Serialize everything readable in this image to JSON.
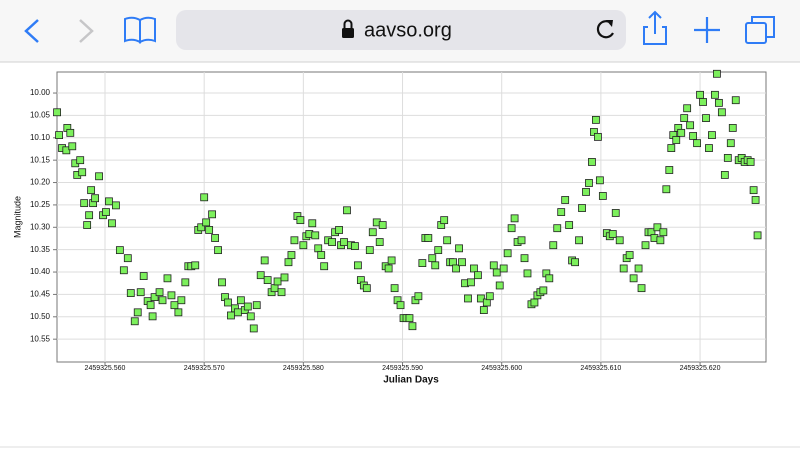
{
  "browser": {
    "url": "aavso.org"
  },
  "chart_data": {
    "type": "scatter",
    "xlabel": "Julian Days",
    "ylabel": "Magnitude",
    "color": "#7cf05c",
    "grid": true,
    "y_inverted": true,
    "xlim": [
      2459325.55516,
      2459325.62665
    ],
    "ylim": [
      10.601,
      9.953
    ],
    "xticks": [
      {
        "value": 2459325.56,
        "label": "2459325.560"
      },
      {
        "value": 2459325.57,
        "label": "2459325.570"
      },
      {
        "value": 2459325.58,
        "label": "2459325.580"
      },
      {
        "value": 2459325.59,
        "label": "2459325.590"
      },
      {
        "value": 2459325.6,
        "label": "2459325.600"
      },
      {
        "value": 2459325.61,
        "label": "2459325.610"
      },
      {
        "value": 2459325.62,
        "label": "2459325.620"
      }
    ],
    "yticks": [
      {
        "value": 10,
        "label": "10.00"
      },
      {
        "value": 10.05,
        "label": "10.05"
      },
      {
        "value": 10.1,
        "label": "10.10"
      },
      {
        "value": 10.15,
        "label": "10.15"
      },
      {
        "value": 10.2,
        "label": "10.20"
      },
      {
        "value": 10.25,
        "label": "10.25"
      },
      {
        "value": 10.3,
        "label": "10.30"
      },
      {
        "value": 10.35,
        "label": "10.35"
      },
      {
        "value": 10.4,
        "label": "10.40"
      },
      {
        "value": 10.45,
        "label": "10.45"
      },
      {
        "value": 10.5,
        "label": "10.50"
      },
      {
        "value": 10.55,
        "label": "10.55"
      }
    ],
    "x": [
      2459325.55517,
      2459325.55537,
      2459325.55567,
      2459325.5561,
      2459325.5562,
      2459325.5565,
      2459325.5567,
      2459325.557,
      2459325.5572,
      2459325.5575,
      2459325.5577,
      2459325.5579,
      2459325.5582,
      2459325.5584,
      2459325.5586,
      2459325.5588,
      2459325.559,
      2459325.5594,
      2459325.5598,
      2459325.5601,
      2459325.5604,
      2459325.5607,
      2459325.5611,
      2459325.5615,
      2459325.5619,
      2459325.5623,
      2459325.5626,
      2459325.563,
      2459325.5633,
      2459325.5636,
      2459325.5639,
      2459325.5643,
      2459325.5646,
      2459325.5648,
      2459325.565,
      2459325.5655,
      2459325.5658,
      2459325.5663,
      2459325.5667,
      2459325.567,
      2459325.5674,
      2459325.5677,
      2459325.5681,
      2459325.5684,
      2459325.5687,
      2459325.5691,
      2459325.5694,
      2459325.5697,
      2459325.57,
      2459325.5702,
      2459325.5705,
      2459325.5708,
      2459325.5711,
      2459325.5714,
      2459325.5718,
      2459325.5721,
      2459325.5724,
      2459325.5727,
      2459325.5731,
      2459325.5734,
      2459325.5737,
      2459325.5741,
      2459325.5744,
      2459325.5747,
      2459325.575,
      2459325.5753,
      2459325.5757,
      2459325.5761,
      2459325.5764,
      2459325.5768,
      2459325.5771,
      2459325.5774,
      2459325.5778,
      2459325.5781,
      2459325.5785,
      2459325.5788,
      2459325.5791,
      2459325.5794,
      2459325.5797,
      2459325.58,
      2459325.5803,
      2459325.5806,
      2459325.5809,
      2459325.5812,
      2459325.5815,
      2459325.5818,
      2459325.5821,
      2459325.5825,
      2459325.5829,
      2459325.5832,
      2459325.5836,
      2459325.5838,
      2459325.5841,
      2459325.5844,
      2459325.5848,
      2459325.5852,
      2459325.5855,
      2459325.5858,
      2459325.5861,
      2459325.5864,
      2459325.5867,
      2459325.587,
      2459325.5874,
      2459325.5877,
      2459325.588,
      2459325.5883,
      2459325.5886,
      2459325.5889,
      2459325.5892,
      2459325.5895,
      2459325.5898,
      2459325.5901,
      2459325.5904,
      2459325.5907,
      2459325.591,
      2459325.5913,
      2459325.5916,
      2459325.592,
      2459325.5923,
      2459325.5926,
      2459325.593,
      2459325.5933,
      2459325.5936,
      2459325.5939,
      2459325.5942,
      2459325.5945,
      2459325.5948,
      2459325.5951,
      2459325.5954,
      2459325.5957,
      2459325.596,
      2459325.5963,
      2459325.5966,
      2459325.5969,
      2459325.5972,
      2459325.5976,
      2459325.5979,
      2459325.5982,
      2459325.5985,
      2459325.5988,
      2459325.5992,
      2459325.5995,
      2459325.5998,
      2459325.6002,
      2459325.6006,
      2459325.601,
      2459325.6013,
      2459325.6016,
      2459325.602,
      2459325.6023,
      2459325.6026,
      2459325.603,
      2459325.6033,
      2459325.6036,
      2459325.6039,
      2459325.6042,
      2459325.6045,
      2459325.6048,
      2459325.6052,
      2459325.6056,
      2459325.606,
      2459325.6064,
      2459325.6068,
      2459325.6071,
      2459325.6074,
      2459325.6078,
      2459325.6081,
      2459325.6085,
      2459325.6088,
      2459325.6091,
      2459325.6093,
      2459325.6095,
      2459325.6097,
      2459325.6099,
      2459325.6102,
      2459325.6106,
      2459325.6109,
      2459325.6112,
      2459325.6115,
      2459325.6119,
      2459325.6123,
      2459325.6126,
      2459325.6129,
      2459325.6133,
      2459325.6138,
      2459325.6141,
      2459325.6145,
      2459325.6148,
      2459325.6151,
      2459325.6154,
      2459325.6157,
      2459325.616,
      2459325.6163,
      2459325.6166,
      2459325.6169,
      2459325.6171,
      2459325.6173,
      2459325.6176,
      2459325.6178,
      2459325.6181,
      2459325.6184,
      2459325.6187,
      2459325.619,
      2459325.6193,
      2459325.6197,
      2459325.62,
      2459325.6203,
      2459325.6206,
      2459325.6209,
      2459325.6212,
      2459325.6215,
      2459325.6217,
      2459325.6219,
      2459325.6222,
      2459325.6225,
      2459325.6228,
      2459325.6231,
      2459325.6233,
      2459325.6236,
      2459325.6239,
      2459325.6242,
      2459325.6245,
      2459325.6248,
      2459325.6251,
      2459325.6254,
      2459325.6256,
      2459325.6258
    ],
    "values": [
      10.043,
      10.094,
      10.123,
      10.128,
      10.078,
      10.089,
      10.119,
      10.157,
      10.183,
      10.15,
      10.177,
      10.246,
      10.295,
      10.273,
      10.217,
      10.246,
      10.235,
      10.186,
      10.273,
      10.266,
      10.242,
      10.291,
      10.251,
      10.351,
      10.396,
      10.369,
      10.447,
      10.51,
      10.49,
      10.445,
      10.409,
      10.465,
      10.474,
      10.499,
      10.456,
      10.445,
      10.463,
      10.414,
      10.452,
      10.474,
      10.49,
      10.463,
      10.423,
      10.387,
      10.387,
      10.385,
      10.306,
      10.3,
      10.233,
      10.289,
      10.306,
      10.271,
      10.324,
      10.351,
      10.423,
      10.456,
      10.468,
      10.497,
      10.481,
      10.49,
      10.463,
      10.485,
      10.477,
      10.499,
      10.526,
      10.474,
      10.407,
      10.374,
      10.418,
      10.445,
      10.436,
      10.421,
      10.445,
      10.412,
      10.378,
      10.362,
      10.329,
      10.275,
      10.284,
      10.34,
      10.32,
      10.315,
      10.291,
      10.318,
      10.347,
      10.362,
      10.387,
      10.329,
      10.333,
      10.311,
      10.306,
      10.34,
      10.333,
      10.262,
      10.34,
      10.342,
      10.385,
      10.418,
      10.43,
      10.436,
      10.351,
      10.311,
      10.289,
      10.333,
      10.295,
      10.387,
      10.392,
      10.374,
      10.436,
      10.463,
      10.474,
      10.503,
      10.503,
      10.503,
      10.521,
      10.463,
      10.454,
      10.38,
      10.324,
      10.324,
      10.369,
      10.385,
      10.351,
      10.295,
      10.284,
      10.329,
      10.378,
      10.378,
      10.392,
      10.347,
      10.378,
      10.425,
      10.459,
      10.423,
      10.392,
      10.407,
      10.459,
      10.485,
      10.468,
      10.454,
      10.385,
      10.401,
      10.43,
      10.392,
      10.358,
      10.302,
      10.28,
      10.333,
      10.329,
      10.369,
      10.403,
      10.472,
      10.468,
      10.452,
      10.445,
      10.441,
      10.403,
      10.414,
      10.34,
      10.302,
      10.266,
      10.239,
      10.295,
      10.374,
      10.378,
      10.329,
      10.257,
      10.221,
      10.201,
      10.154,
      10.087,
      10.06,
      10.098,
      10.195,
      10.23,
      10.313,
      10.32,
      10.315,
      10.268,
      10.329,
      10.392,
      10.369,
      10.362,
      10.414,
      10.392,
      10.436,
      10.34,
      10.311,
      10.311,
      10.324,
      10.3,
      10.329,
      10.311,
      10.215,
      10.172,
      10.123,
      10.094,
      10.105,
      10.078,
      10.089,
      10.056,
      10.034,
      10.072,
      10.096,
      10.112,
      10.004,
      10.02,
      10.056,
      10.123,
      10.094,
      10.004,
      9.957,
      10.022,
      10.043,
      10.183,
      10.145,
      10.112,
      10.078,
      10.016,
      10.15,
      10.145,
      10.154,
      10.15,
      10.154,
      10.217,
      10.239,
      10.318
    ]
  }
}
